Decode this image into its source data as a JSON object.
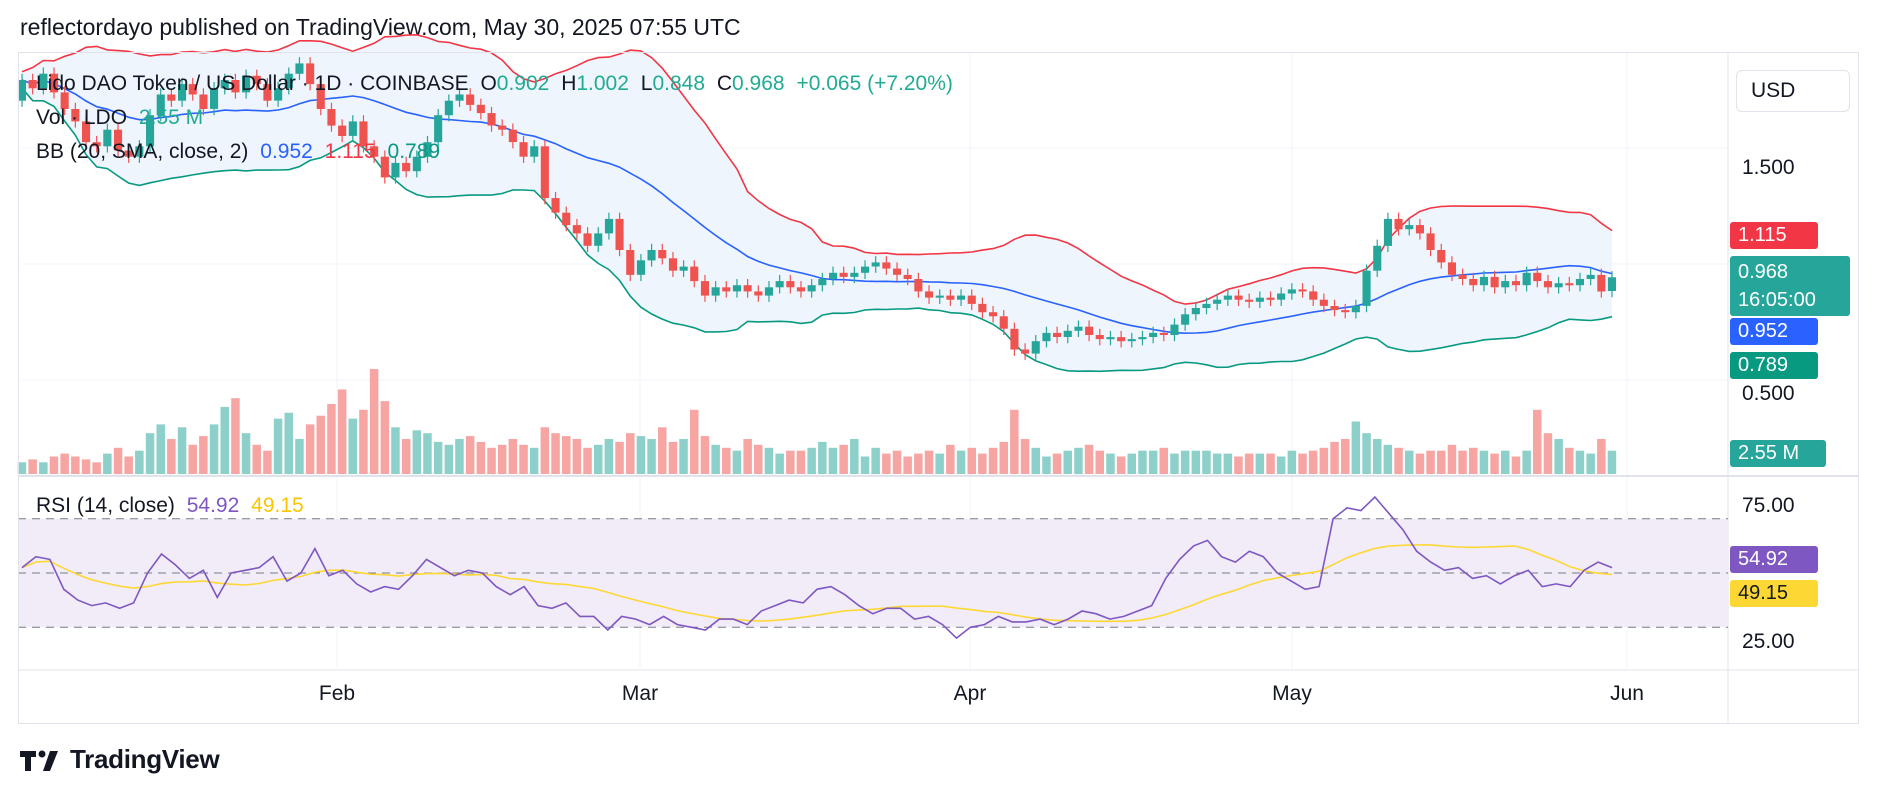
{
  "header": {
    "publisher": "reflectordayo published on TradingView.com, May 30, 2025 07:55 UTC"
  },
  "legend": {
    "symbol": "Lido DAO Token / US Dollar · 1D · COINBASE",
    "o_label": "O",
    "o_value": "0.902",
    "h_label": "H",
    "h_value": "1.002",
    "l_label": "L",
    "l_value": "0.848",
    "c_label": "C",
    "c_value": "0.968",
    "change": "+0.065 (+7.20%)",
    "vol_label": "Vol · LDO",
    "vol_value": "2.55 M",
    "bb_label": "BB (20, SMA, close, 2)",
    "bb_basis": "0.952",
    "bb_upper": "1.115",
    "bb_lower": "0.789",
    "rsi_label": "RSI (14, close)",
    "rsi_value": "54.92",
    "rsi_ma": "49.15"
  },
  "currency_button": "USD",
  "price_axis": {
    "ticks": [
      "1.500",
      "0.500"
    ],
    "tick_values": [
      1.5,
      0.5
    ]
  },
  "price_tags": {
    "upper": "1.115",
    "close": "0.968",
    "countdown": "16:05:00",
    "basis": "0.952",
    "lower": "0.789",
    "volume": "2.55 M",
    "rsi": "54.92",
    "rsi_ma": "49.15"
  },
  "rsi_axis": {
    "ticks": [
      "75.00",
      "25.00"
    ],
    "tick_values": [
      75,
      25
    ]
  },
  "time_axis": [
    "Feb",
    "Mar",
    "Apr",
    "May",
    "Jun"
  ],
  "footer": {
    "brand": "TradingView"
  },
  "colors": {
    "up": "#26a69a",
    "down": "#ef5350",
    "upper_band": "#f23645",
    "lower_band": "#089981",
    "basis": "#2962ff",
    "band_fill": "#eef5fd",
    "rsi_line": "#7e57c2",
    "rsi_ma": "#fdd835",
    "rsi_fill": "#f1ecf7",
    "vol_up": "#8dd0c9",
    "vol_down": "#f6a5a3"
  },
  "chart_data": {
    "type": "candlestick",
    "title": "Lido DAO Token / US Dollar · 1D · COINBASE",
    "price_range": [
      0.28,
      2.05
    ],
    "rsi_range": [
      15,
      85
    ],
    "candles_approx": [
      {
        "o": 1.82,
        "c": 1.92
      },
      {
        "o": 1.92,
        "c": 1.88
      },
      {
        "o": 1.88,
        "c": 1.95
      },
      {
        "o": 1.95,
        "c": 1.86
      },
      {
        "o": 1.86,
        "c": 1.78
      },
      {
        "o": 1.78,
        "c": 1.72
      },
      {
        "o": 1.72,
        "c": 1.62
      },
      {
        "o": 1.62,
        "c": 1.6
      },
      {
        "o": 1.6,
        "c": 1.68
      },
      {
        "o": 1.68,
        "c": 1.58
      },
      {
        "o": 1.58,
        "c": 1.55
      },
      {
        "o": 1.55,
        "c": 1.6
      },
      {
        "o": 1.6,
        "c": 1.75
      },
      {
        "o": 1.75,
        "c": 1.85
      },
      {
        "o": 1.85,
        "c": 1.82
      },
      {
        "o": 1.82,
        "c": 1.9
      },
      {
        "o": 1.9,
        "c": 1.85
      },
      {
        "o": 1.85,
        "c": 1.78
      },
      {
        "o": 1.78,
        "c": 1.88
      },
      {
        "o": 1.88,
        "c": 1.92
      },
      {
        "o": 1.92,
        "c": 1.86
      },
      {
        "o": 1.86,
        "c": 1.94
      },
      {
        "o": 1.94,
        "c": 1.9
      },
      {
        "o": 1.9,
        "c": 1.82
      },
      {
        "o": 1.82,
        "c": 1.88
      },
      {
        "o": 1.88,
        "c": 1.95
      },
      {
        "o": 1.95,
        "c": 2.0
      },
      {
        "o": 2.0,
        "c": 1.9
      },
      {
        "o": 1.9,
        "c": 1.78
      },
      {
        "o": 1.78,
        "c": 1.7
      },
      {
        "o": 1.7,
        "c": 1.65
      },
      {
        "o": 1.65,
        "c": 1.72
      },
      {
        "o": 1.72,
        "c": 1.6
      },
      {
        "o": 1.6,
        "c": 1.55
      },
      {
        "o": 1.55,
        "c": 1.45
      },
      {
        "o": 1.45,
        "c": 1.52
      },
      {
        "o": 1.52,
        "c": 1.48
      },
      {
        "o": 1.48,
        "c": 1.55
      },
      {
        "o": 1.55,
        "c": 1.62
      },
      {
        "o": 1.62,
        "c": 1.75
      },
      {
        "o": 1.75,
        "c": 1.82
      },
      {
        "o": 1.82,
        "c": 1.85
      },
      {
        "o": 1.85,
        "c": 1.8
      },
      {
        "o": 1.8,
        "c": 1.76
      },
      {
        "o": 1.76,
        "c": 1.7
      },
      {
        "o": 1.7,
        "c": 1.68
      },
      {
        "o": 1.68,
        "c": 1.62
      },
      {
        "o": 1.62,
        "c": 1.55
      },
      {
        "o": 1.55,
        "c": 1.6
      },
      {
        "o": 1.6,
        "c": 1.35
      },
      {
        "o": 1.35,
        "c": 1.28
      },
      {
        "o": 1.28,
        "c": 1.22
      },
      {
        "o": 1.22,
        "c": 1.18
      },
      {
        "o": 1.18,
        "c": 1.12
      },
      {
        "o": 1.12,
        "c": 1.18
      },
      {
        "o": 1.18,
        "c": 1.25
      },
      {
        "o": 1.25,
        "c": 1.1
      },
      {
        "o": 1.1,
        "c": 0.98
      },
      {
        "o": 0.98,
        "c": 1.05
      },
      {
        "o": 1.05,
        "c": 1.1
      },
      {
        "o": 1.1,
        "c": 1.06
      },
      {
        "o": 1.06,
        "c": 1.0
      },
      {
        "o": 1.0,
        "c": 1.02
      },
      {
        "o": 1.02,
        "c": 0.95
      },
      {
        "o": 0.95,
        "c": 0.88
      },
      {
        "o": 0.88,
        "c": 0.92
      },
      {
        "o": 0.92,
        "c": 0.9
      },
      {
        "o": 0.9,
        "c": 0.93
      },
      {
        "o": 0.93,
        "c": 0.9
      },
      {
        "o": 0.9,
        "c": 0.88
      },
      {
        "o": 0.88,
        "c": 0.92
      },
      {
        "o": 0.92,
        "c": 0.95
      },
      {
        "o": 0.95,
        "c": 0.92
      },
      {
        "o": 0.92,
        "c": 0.9
      },
      {
        "o": 0.9,
        "c": 0.93
      },
      {
        "o": 0.93,
        "c": 0.96
      },
      {
        "o": 0.96,
        "c": 0.99
      },
      {
        "o": 0.99,
        "c": 0.97
      },
      {
        "o": 0.97,
        "c": 0.99
      },
      {
        "o": 0.99,
        "c": 1.02
      },
      {
        "o": 1.02,
        "c": 1.04
      },
      {
        "o": 1.04,
        "c": 1.01
      },
      {
        "o": 1.01,
        "c": 0.98
      },
      {
        "o": 0.98,
        "c": 0.96
      },
      {
        "o": 0.96,
        "c": 0.9
      },
      {
        "o": 0.9,
        "c": 0.87
      },
      {
        "o": 0.87,
        "c": 0.88
      },
      {
        "o": 0.88,
        "c": 0.86
      },
      {
        "o": 0.86,
        "c": 0.88
      },
      {
        "o": 0.88,
        "c": 0.84
      },
      {
        "o": 0.84,
        "c": 0.8
      },
      {
        "o": 0.8,
        "c": 0.78
      },
      {
        "o": 0.78,
        "c": 0.72
      },
      {
        "o": 0.72,
        "c": 0.62
      },
      {
        "o": 0.62,
        "c": 0.6
      },
      {
        "o": 0.6,
        "c": 0.66
      },
      {
        "o": 0.66,
        "c": 0.7
      },
      {
        "o": 0.7,
        "c": 0.68
      },
      {
        "o": 0.68,
        "c": 0.71
      },
      {
        "o": 0.71,
        "c": 0.73
      },
      {
        "o": 0.73,
        "c": 0.69
      },
      {
        "o": 0.69,
        "c": 0.67
      },
      {
        "o": 0.67,
        "c": 0.68
      },
      {
        "o": 0.68,
        "c": 0.66
      },
      {
        "o": 0.66,
        "c": 0.67
      },
      {
        "o": 0.67,
        "c": 0.68
      },
      {
        "o": 0.68,
        "c": 0.7
      },
      {
        "o": 0.7,
        "c": 0.69
      },
      {
        "o": 0.69,
        "c": 0.74
      },
      {
        "o": 0.74,
        "c": 0.79
      },
      {
        "o": 0.79,
        "c": 0.82
      },
      {
        "o": 0.82,
        "c": 0.84
      },
      {
        "o": 0.84,
        "c": 0.86
      },
      {
        "o": 0.86,
        "c": 0.88
      },
      {
        "o": 0.88,
        "c": 0.86
      },
      {
        "o": 0.86,
        "c": 0.85
      },
      {
        "o": 0.85,
        "c": 0.87
      },
      {
        "o": 0.87,
        "c": 0.86
      },
      {
        "o": 0.86,
        "c": 0.89
      },
      {
        "o": 0.89,
        "c": 0.91
      },
      {
        "o": 0.91,
        "c": 0.9
      },
      {
        "o": 0.9,
        "c": 0.86
      },
      {
        "o": 0.86,
        "c": 0.83
      },
      {
        "o": 0.83,
        "c": 0.81
      },
      {
        "o": 0.81,
        "c": 0.8
      },
      {
        "o": 0.8,
        "c": 0.83
      },
      {
        "o": 0.83,
        "c": 1.0
      },
      {
        "o": 1.0,
        "c": 1.12
      },
      {
        "o": 1.12,
        "c": 1.25
      },
      {
        "o": 1.25,
        "c": 1.2
      },
      {
        "o": 1.2,
        "c": 1.22
      },
      {
        "o": 1.22,
        "c": 1.18
      },
      {
        "o": 1.18,
        "c": 1.1
      },
      {
        "o": 1.1,
        "c": 1.04
      },
      {
        "o": 1.04,
        "c": 0.98
      },
      {
        "o": 0.98,
        "c": 0.96
      },
      {
        "o": 0.96,
        "c": 0.93
      },
      {
        "o": 0.93,
        "c": 0.97
      },
      {
        "o": 0.97,
        "c": 0.92
      },
      {
        "o": 0.92,
        "c": 0.95
      },
      {
        "o": 0.95,
        "c": 0.93
      },
      {
        "o": 0.93,
        "c": 0.99
      },
      {
        "o": 0.99,
        "c": 0.95
      },
      {
        "o": 0.95,
        "c": 0.92
      },
      {
        "o": 0.92,
        "c": 0.94
      },
      {
        "o": 0.94,
        "c": 0.93
      },
      {
        "o": 0.93,
        "c": 0.96
      },
      {
        "o": 0.96,
        "c": 0.98
      },
      {
        "o": 0.98,
        "c": 0.9
      },
      {
        "o": 0.902,
        "c": 0.968
      }
    ],
    "volume_approx": [
      4,
      5,
      4,
      6,
      7,
      6,
      5,
      4,
      7,
      9,
      6,
      8,
      14,
      17,
      12,
      16,
      10,
      13,
      17,
      23,
      26,
      14,
      10,
      8,
      19,
      21,
      12,
      17,
      20,
      24,
      29,
      19,
      22,
      36,
      25,
      16,
      12,
      15,
      14,
      11,
      10,
      12,
      13,
      11,
      9,
      10,
      12,
      10,
      9,
      16,
      14,
      13,
      12,
      9,
      10,
      12,
      11,
      14,
      13,
      12,
      16,
      11,
      12,
      22,
      13,
      10,
      9,
      8,
      12,
      10,
      9,
      7,
      8,
      8,
      9,
      11,
      9,
      10,
      12,
      6,
      9,
      7,
      8,
      6,
      7,
      8,
      7,
      10,
      8,
      9,
      7,
      9,
      11,
      22,
      12,
      9,
      6,
      7,
      8,
      9,
      10,
      8,
      7,
      6,
      7,
      8,
      8,
      9,
      7,
      8,
      8,
      8,
      7,
      7,
      6,
      7,
      7,
      7,
      6,
      8,
      7,
      8,
      9,
      11,
      12,
      18,
      14,
      12,
      10,
      9,
      8,
      7,
      8,
      8,
      10,
      8,
      9,
      8,
      7,
      8,
      6,
      8,
      22,
      14,
      12,
      9,
      8,
      7,
      12,
      8
    ],
    "rsi_approx": [
      52,
      56,
      55,
      44,
      40,
      38,
      39,
      37,
      39,
      50,
      57,
      53,
      48,
      51,
      41,
      50,
      51,
      52,
      56,
      47,
      50,
      59,
      49,
      51,
      46,
      43,
      45,
      44,
      49,
      55,
      52,
      49,
      51,
      50,
      45,
      42,
      45,
      38,
      37,
      39,
      34,
      34,
      29,
      34,
      33,
      31,
      34,
      31,
      30,
      29,
      33,
      33,
      31,
      36,
      38,
      40,
      39,
      44,
      45,
      42,
      38,
      35,
      37,
      37,
      33,
      34,
      31,
      26,
      30,
      31,
      34,
      32,
      32,
      33,
      31,
      33,
      36,
      35,
      33,
      34,
      36,
      38,
      48,
      55,
      60,
      62,
      56,
      54,
      58,
      56,
      50,
      47,
      44,
      45,
      70,
      74,
      73,
      78,
      72,
      66,
      58,
      54,
      51,
      52,
      48,
      49,
      46,
      49,
      51,
      45,
      46,
      45,
      51,
      54,
      52
    ],
    "bb_basis_approx_points": [
      [
        0,
        1.7
      ],
      [
        60,
        1.32
      ],
      [
        100,
        1.08
      ],
      [
        150,
        0.93
      ],
      [
        205,
        0.82
      ],
      [
        245,
        0.88
      ],
      [
        270,
        0.952
      ]
    ],
    "bb_upper_last": 1.115,
    "bb_lower_last": 0.789
  }
}
